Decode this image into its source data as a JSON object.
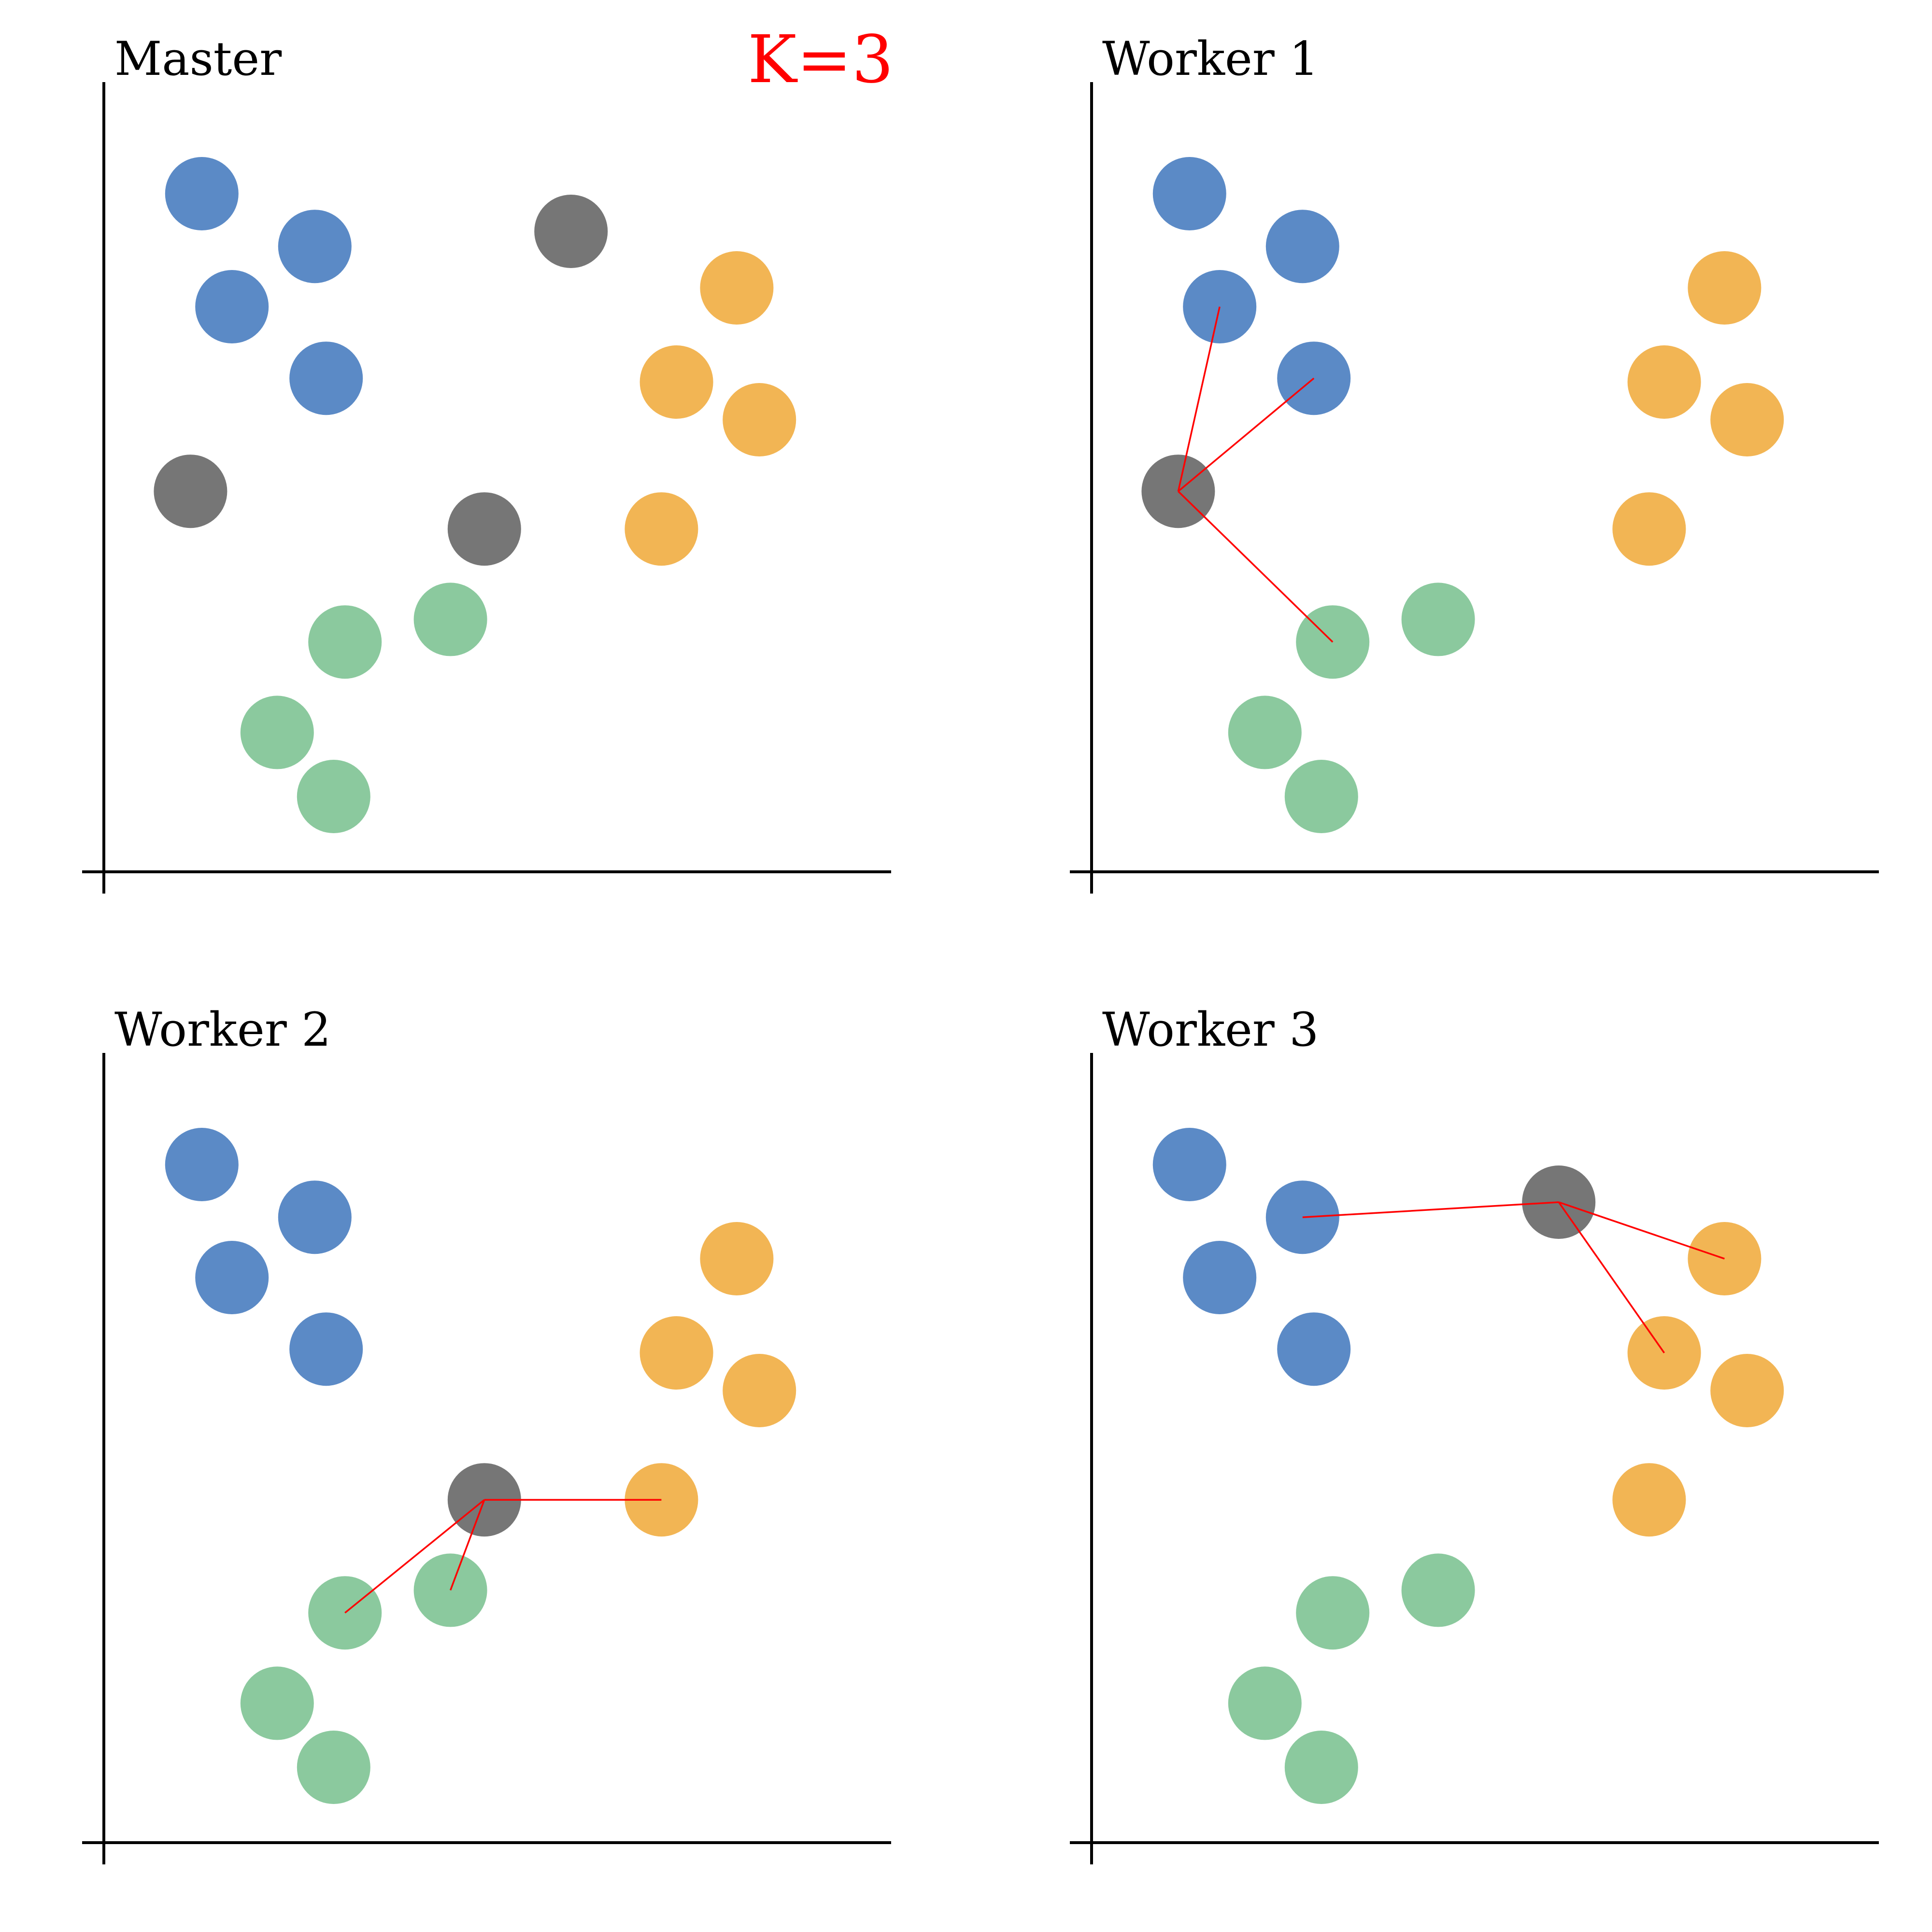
{
  "figure": {
    "k_label": "K=3",
    "k_color": "#ff0000",
    "link_color": "#ff0000"
  },
  "colors": {
    "blue": "#5b8ac6",
    "orange": "#f2b554",
    "green": "#8bc99e",
    "gray": "#767676"
  },
  "point_sets": {
    "blue": [
      [
        1.3,
        9.0
      ],
      [
        2.8,
        8.3
      ],
      [
        1.7,
        7.5
      ],
      [
        2.95,
        6.55
      ]
    ],
    "orange": [
      [
        8.4,
        7.75
      ],
      [
        7.6,
        6.5
      ],
      [
        8.7,
        6.0
      ],
      [
        7.4,
        4.55
      ]
    ],
    "green": [
      [
        4.6,
        3.35
      ],
      [
        3.2,
        3.05
      ],
      [
        2.3,
        1.85
      ],
      [
        3.05,
        1.0
      ]
    ]
  },
  "panels": [
    {
      "title": "Master",
      "centroids": [
        [
          6.2,
          8.5
        ],
        [
          1.15,
          5.05
        ],
        [
          5.05,
          4.55
        ]
      ],
      "links": []
    },
    {
      "title": "Worker 1",
      "centroids": [
        [
          1.15,
          5.05
        ]
      ],
      "links": [
        [
          [
            1.15,
            5.05
          ],
          [
            1.7,
            7.5
          ]
        ],
        [
          [
            1.15,
            5.05
          ],
          [
            2.95,
            6.55
          ]
        ],
        [
          [
            1.15,
            5.05
          ],
          [
            3.2,
            3.05
          ]
        ]
      ]
    },
    {
      "title": "Worker 2",
      "centroids": [
        [
          5.05,
          4.55
        ]
      ],
      "links": [
        [
          [
            5.05,
            4.55
          ],
          [
            3.2,
            3.05
          ]
        ],
        [
          [
            5.05,
            4.55
          ],
          [
            4.6,
            3.35
          ]
        ],
        [
          [
            5.05,
            4.55
          ],
          [
            7.4,
            4.55
          ]
        ]
      ]
    },
    {
      "title": "Worker 3",
      "centroids": [
        [
          6.2,
          8.5
        ]
      ],
      "links": [
        [
          [
            6.2,
            8.5
          ],
          [
            2.8,
            8.3
          ]
        ],
        [
          [
            6.2,
            8.5
          ],
          [
            8.4,
            7.75
          ]
        ],
        [
          [
            6.2,
            8.5
          ],
          [
            7.6,
            6.5
          ]
        ]
      ]
    }
  ]
}
